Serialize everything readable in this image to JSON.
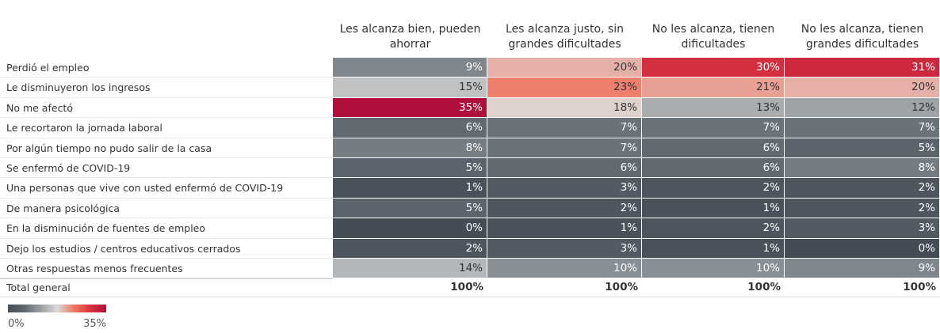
{
  "chart_data": {
    "type": "heatmap",
    "categories": [
      "Perdió el empleo",
      "Le disminuyeron los ingresos",
      "No me afectó",
      "Le recortaron la jornada laboral",
      "Por algún tiempo no pudo salir de la casa",
      "Se enfermó de COVID-19",
      "Una personas que vive con usted enfermó de COVID-19",
      "De manera psicológica",
      "En la disminución de fuentes de empleo",
      "Dejo los estudios / centros educativos cerrados",
      "Otras respuestas menos frecuentes"
    ],
    "series": [
      {
        "name": "Les alcanza bien, pueden ahorrar",
        "values": [
          9,
          15,
          35,
          6,
          8,
          5,
          1,
          5,
          0,
          2,
          14
        ],
        "value_labels": [
          "9%",
          "15%",
          "35%",
          "6%",
          "8%",
          "5%",
          "1%",
          "5%",
          "0%",
          "2%",
          "14%"
        ]
      },
      {
        "name": "Les alcanza justo, sin grandes dificultades",
        "values": [
          20,
          23,
          18,
          7,
          7,
          6,
          3,
          2,
          1,
          3,
          10
        ],
        "value_labels": [
          "20%",
          "23%",
          "18%",
          "7%",
          "7%",
          "6%",
          "3%",
          "2%",
          "1%",
          "3%",
          "10%"
        ]
      },
      {
        "name": "No les alcanza, tienen dificultades",
        "values": [
          30,
          21,
          13,
          7,
          6,
          6,
          2,
          1,
          2,
          1,
          10
        ],
        "value_labels": [
          "30%",
          "21%",
          "13%",
          "7%",
          "6%",
          "6%",
          "2%",
          "1%",
          "2%",
          "1%",
          "10%"
        ]
      },
      {
        "name": "No les alcanza, tienen grandes dificultades",
        "values": [
          31,
          20,
          12,
          7,
          5,
          8,
          2,
          2,
          3,
          0,
          9
        ],
        "value_labels": [
          "31%",
          "20%",
          "12%",
          "7%",
          "5%",
          "8%",
          "2%",
          "2%",
          "3%",
          "0%",
          "9%"
        ]
      }
    ],
    "totals": {
      "label": "Total general",
      "values": [
        100,
        100,
        100,
        100
      ],
      "value_labels": [
        "100%",
        "100%",
        "100%",
        "100%"
      ]
    },
    "color_scale": {
      "lim": [
        0,
        35
      ],
      "ticks": [
        {
          "value": 0,
          "label": "0%"
        },
        {
          "value": 35,
          "label": "35%"
        }
      ],
      "colors": [
        "#444d56",
        "#5f6870",
        "#9aa0a4",
        "#dcd9d8",
        "#f07a66",
        "#da3440",
        "#ae0f3b"
      ]
    }
  }
}
